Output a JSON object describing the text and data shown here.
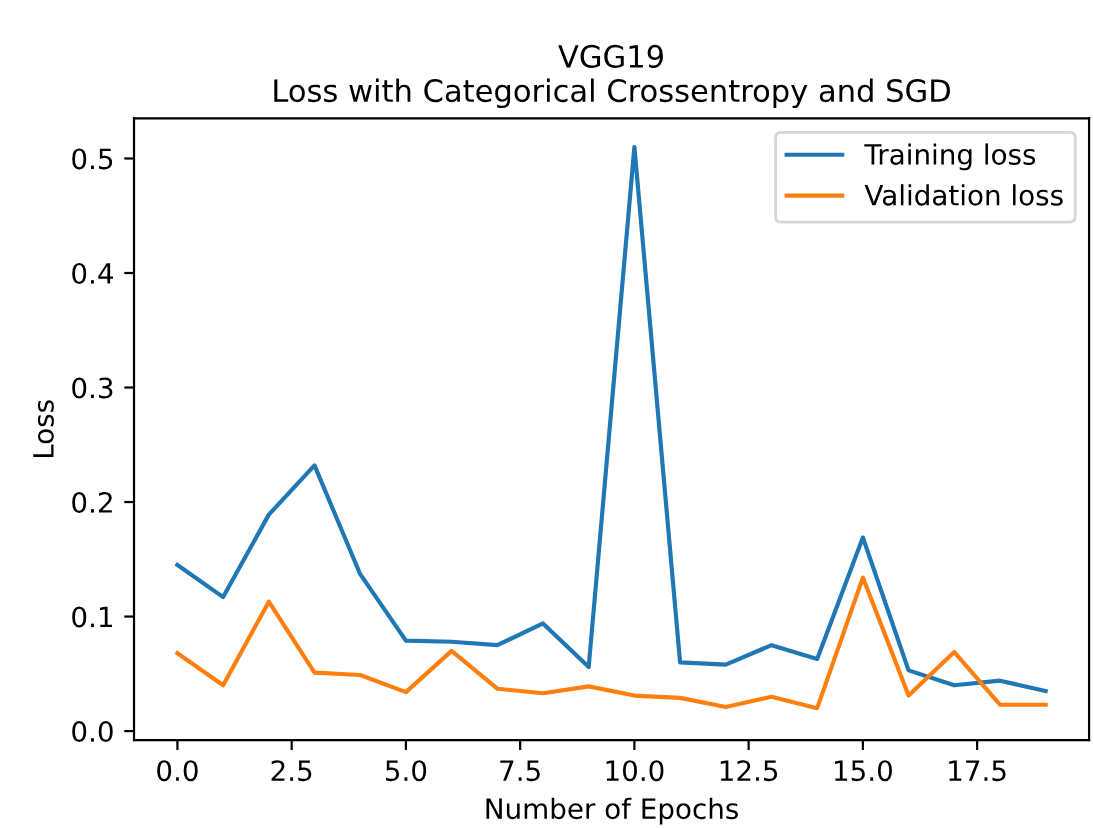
{
  "chart_data": {
    "type": "line",
    "title": "VGG19\nLoss with Categorical Crossentropy and SGD",
    "xlabel": "Number of Epochs",
    "ylabel": "Loss",
    "x": [
      0,
      1,
      2,
      3,
      4,
      5,
      6,
      7,
      8,
      9,
      10,
      11,
      12,
      13,
      14,
      15,
      16,
      17,
      18,
      19
    ],
    "series": [
      {
        "name": "Training loss",
        "color": "#1f77b4",
        "values": [
          0.145,
          0.117,
          0.189,
          0.232,
          0.137,
          0.079,
          0.078,
          0.075,
          0.094,
          0.056,
          0.51,
          0.06,
          0.058,
          0.075,
          0.063,
          0.169,
          0.053,
          0.04,
          0.044,
          0.035
        ]
      },
      {
        "name": "Validation loss",
        "color": "#ff7f0e",
        "values": [
          0.068,
          0.04,
          0.113,
          0.051,
          0.049,
          0.034,
          0.07,
          0.037,
          0.033,
          0.039,
          0.031,
          0.029,
          0.021,
          0.03,
          0.02,
          0.134,
          0.031,
          0.069,
          0.023,
          0.023
        ]
      }
    ],
    "xlim": [
      -0.95,
      19.95
    ],
    "ylim": [
      -0.008,
      0.535
    ],
    "xticks": [
      {
        "value": 0,
        "label": "0.0"
      },
      {
        "value": 2.5,
        "label": "2.5"
      },
      {
        "value": 5,
        "label": "5.0"
      },
      {
        "value": 7.5,
        "label": "7.5"
      },
      {
        "value": 10,
        "label": "10.0"
      },
      {
        "value": 12.5,
        "label": "12.5"
      },
      {
        "value": 15,
        "label": "15.0"
      },
      {
        "value": 17.5,
        "label": "17.5"
      }
    ],
    "yticks": [
      {
        "value": 0,
        "label": "0.0"
      },
      0.1,
      0.2,
      0.3,
      0.4,
      0.5
    ],
    "legend": "top right",
    "grid": false,
    "marker": "none",
    "line_style": "solid"
  }
}
